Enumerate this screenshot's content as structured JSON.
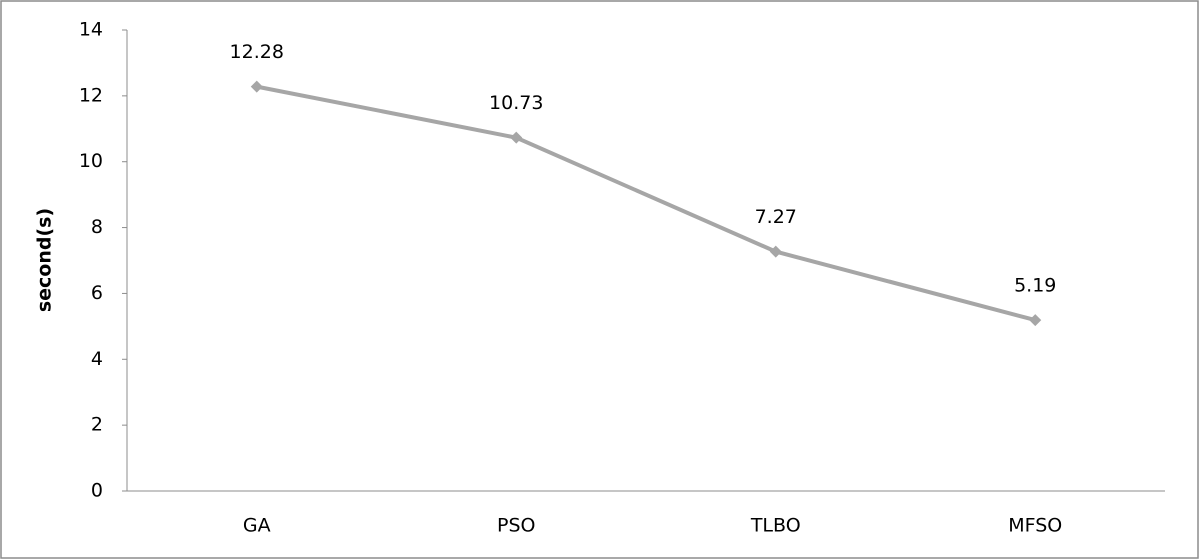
{
  "chart_data": {
    "type": "line",
    "y_label": "second(s)",
    "categories": [
      "GA",
      "PSO",
      "TLBO",
      "MFSO"
    ],
    "values": [
      12.28,
      10.73,
      7.27,
      5.19
    ],
    "color": "#a6a6a6",
    "ylim": [
      0,
      14
    ],
    "yticks": [
      0,
      2,
      4,
      6,
      8,
      10,
      12,
      14
    ],
    "grid": false,
    "data_labels": true
  }
}
